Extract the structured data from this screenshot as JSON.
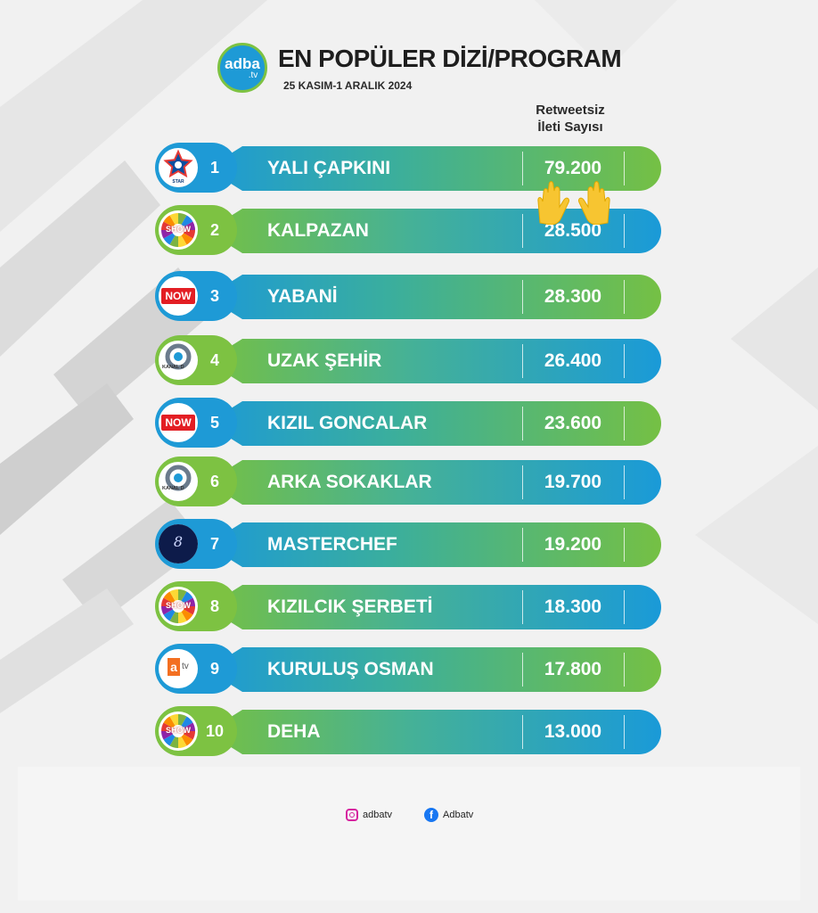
{
  "header": {
    "logo_main": "adba",
    "logo_sub": ".tv",
    "title": "EN POPÜLER DİZİ/PROGRAM",
    "subtitle": "25 KASIM-1 ARALIK 2024",
    "column_header_line1": "Retweetsiz",
    "column_header_line2": "İleti Sayısı"
  },
  "colors": {
    "green": "#7dc242",
    "blue": "#1e9ad6",
    "now_red": "#e31e24",
    "atv_orange": "#f36f21"
  },
  "chart_data": {
    "type": "table",
    "rows": [
      {
        "rank": "1",
        "channel": "star-tv",
        "name": "YALI ÇAPKINI",
        "value": "79.200",
        "badge": "blue"
      },
      {
        "rank": "2",
        "channel": "show-tv",
        "name": "KALPAZAN",
        "value": "28.500",
        "badge": "green"
      },
      {
        "rank": "3",
        "channel": "now-tv",
        "name": "YABANİ",
        "value": "28.300",
        "badge": "blue"
      },
      {
        "rank": "4",
        "channel": "kanal-d",
        "name": "UZAK ŞEHİR",
        "value": "26.400",
        "badge": "green"
      },
      {
        "rank": "5",
        "channel": "now-tv",
        "name": "KIZIL GONCALAR",
        "value": "23.600",
        "badge": "blue"
      },
      {
        "rank": "6",
        "channel": "kanal-d",
        "name": "ARKA SOKAKLAR",
        "value": "19.700",
        "badge": "green"
      },
      {
        "rank": "7",
        "channel": "tv8",
        "name": "MASTERCHEF",
        "value": "19.200",
        "badge": "blue"
      },
      {
        "rank": "8",
        "channel": "show-tv",
        "name": "KIZILCIK ŞERBETİ",
        "value": "18.300",
        "badge": "green"
      },
      {
        "rank": "9",
        "channel": "atv",
        "name": "KURULUŞ OSMAN",
        "value": "17.800",
        "badge": "blue"
      },
      {
        "rank": "10",
        "channel": "show-tv",
        "name": "DEHA",
        "value": "13.000",
        "badge": "green"
      }
    ]
  },
  "channel_logos": {
    "now_text": "NOW",
    "kanal_text": "KANAL D",
    "star_text": "STAR",
    "show_text": "SHOW",
    "atv_a": "a",
    "atv_tv": "tv",
    "tv8_text": "8"
  },
  "footer": {
    "instagram_icon": "instagram-icon",
    "instagram_handle": "adbatv",
    "facebook_icon": "facebook-icon",
    "facebook_glyph": "f",
    "facebook_handle": "Adbatv"
  },
  "decorations": {
    "clap_icon": "raising-hands-icon"
  }
}
